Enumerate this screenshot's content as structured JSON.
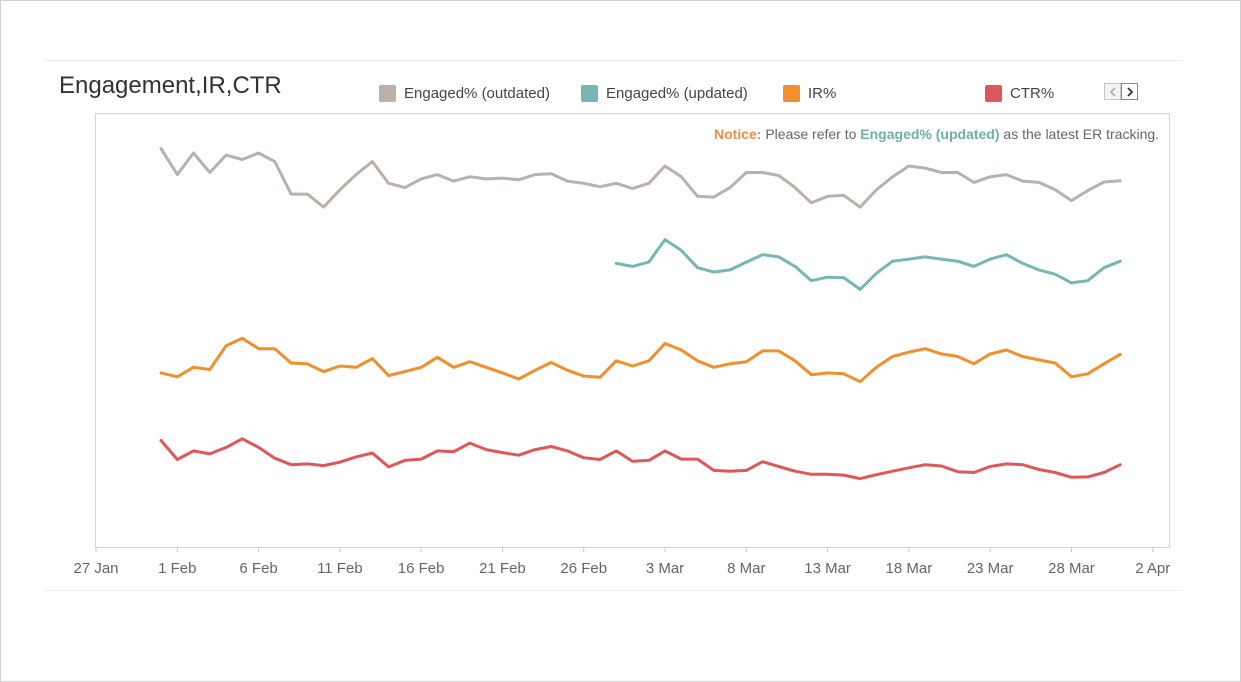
{
  "chart_data": {
    "type": "line",
    "title": "Engagement,IR,CTR",
    "legend_position": "top",
    "grid": false,
    "x_tick_labels": [
      "27 Jan",
      "1 Feb",
      "6 Feb",
      "11 Feb",
      "16 Feb",
      "21 Feb",
      "26 Feb",
      "3 Mar",
      "8 Mar",
      "13 Mar",
      "18 Mar",
      "23 Mar",
      "28 Mar",
      "2 Apr"
    ],
    "x_range": [
      "2019-01-27",
      "2019-04-03"
    ],
    "x_start": "2019-01-31",
    "y_range": [
      0,
      100
    ],
    "series": [
      {
        "name": "Engaged% (outdated)",
        "color": "#bab0ac",
        "start_index": 0,
        "values": [
          92,
          86,
          91,
          86.5,
          90.5,
          89.5,
          91,
          89,
          81.5,
          81.5,
          78.5,
          82.5,
          86,
          89,
          84,
          83,
          85,
          86,
          84.5,
          85.5,
          85,
          85.2,
          84.8,
          86,
          86.2,
          84.5,
          84,
          83.2,
          84,
          82.8,
          84,
          88,
          85.5,
          81,
          80.8,
          83,
          86.5,
          86.5,
          85.8,
          83,
          79.5,
          81,
          81.2,
          78.5,
          82.5,
          85.5,
          88,
          87.5,
          86.5,
          86.5,
          84.2,
          85.5,
          86,
          84.5,
          84.2,
          82.5,
          80,
          82.3,
          84.3,
          84.6
        ]
      },
      {
        "name": "Engaged% (updated)",
        "color": "#76b7b2",
        "start_index": 28,
        "values": [
          65.5,
          64.8,
          65.8,
          71,
          68.5,
          64.5,
          63.5,
          64,
          65.8,
          67.5,
          67,
          64.8,
          61.5,
          62.3,
          62.2,
          59.5,
          63.2,
          66,
          66.5,
          67,
          66.5,
          66,
          64.8,
          66.5,
          67.5,
          65.5,
          64,
          63,
          61,
          61.5,
          64.5,
          66
        ]
      },
      {
        "name": "IR%",
        "color": "#f28e2b",
        "start_index": 0,
        "values": [
          40.2,
          39.3,
          41.5,
          41,
          46.5,
          48.2,
          45.8,
          45.8,
          42.5,
          42.3,
          40.5,
          41.8,
          41.5,
          43.5,
          39.6,
          40.5,
          41.5,
          43.8,
          41.5,
          42.8,
          41.5,
          40.2,
          38.8,
          40.8,
          42.6,
          40.8,
          39.5,
          39.2,
          43,
          41.8,
          43,
          47,
          45.5,
          43,
          41.5,
          42.3,
          42.8,
          45.3,
          45.3,
          43,
          39.8,
          40.2,
          40,
          38.2,
          41.5,
          44,
          45,
          45.8,
          44.6,
          44,
          42.3,
          44.6,
          45.5,
          44,
          43.2,
          42.5,
          39.3,
          40,
          42.3,
          44.5
        ]
      },
      {
        "name": "CTR%",
        "color": "#e15759",
        "start_index": 0,
        "values": [
          24.6,
          20.2,
          22.2,
          21.5,
          23,
          25,
          23,
          20.5,
          19,
          19.2,
          18.8,
          19.6,
          20.8,
          21.7,
          18.5,
          20,
          20.3,
          22.2,
          22,
          24,
          22.5,
          21.8,
          21.2,
          22.5,
          23.2,
          22.2,
          20.6,
          20.2,
          22.2,
          19.8,
          20,
          22.2,
          20.3,
          20.3,
          17.7,
          17.5,
          17.7,
          19.7,
          18.6,
          17.5,
          16.8,
          16.8,
          16.6,
          15.8,
          16.7,
          17.5,
          18.3,
          19,
          18.7,
          17.4,
          17.2,
          18.6,
          19.2,
          19,
          17.9,
          17.2,
          16.1,
          16.2,
          17.2,
          19
        ]
      }
    ]
  },
  "notice": {
    "label": "Notice:",
    "text_before": "Please refer to",
    "highlight": "Engaged% (updated)",
    "text_after": "as the latest ER tracking."
  }
}
